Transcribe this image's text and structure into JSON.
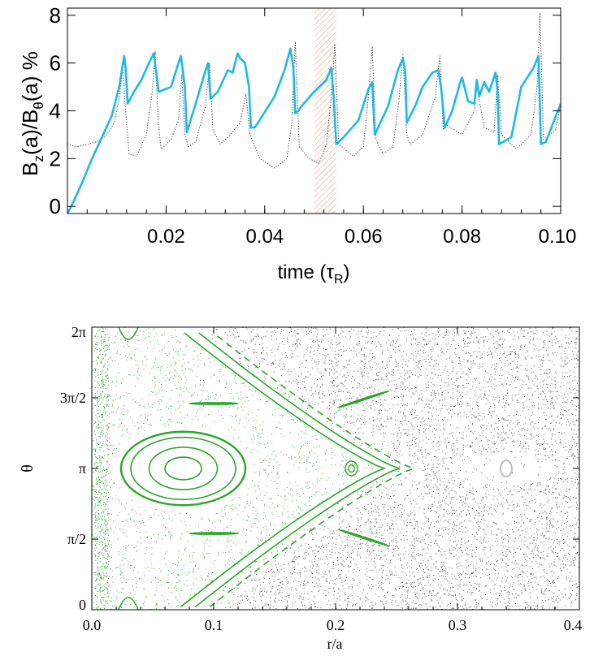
{
  "colors": {
    "cyan_series": "#1fb8e8",
    "dotted_series": "#222222",
    "hatch": "#f0a07a",
    "green_orbits": "#2aa52a",
    "black_points": "#333333",
    "grey_islands": "#bbbbbb"
  },
  "chart_data": [
    {
      "type": "line",
      "title": "",
      "xlabel": "time (τ",
      "xlabel_sub": "R",
      "xlabel_close": ")",
      "ylabel_parts": [
        "B",
        "z",
        "(a)/B",
        "θ",
        "(a) %"
      ],
      "xlim": [
        0.0,
        0.1
      ],
      "ylim": [
        -0.3,
        8.3
      ],
      "xticks": [
        0.02,
        0.04,
        0.06,
        0.08,
        0.1
      ],
      "xtick_labels": [
        "0.02",
        "0.04",
        "0.06",
        "0.08",
        "0.10"
      ],
      "yticks": [
        0,
        2,
        4,
        6,
        8
      ],
      "ytick_labels": [
        "0",
        "2",
        "4",
        "6",
        "8"
      ],
      "shaded_band": [
        0.05,
        0.0545
      ],
      "series": [
        {
          "style": "solid",
          "x": [
            0.0,
            0.001,
            0.003,
            0.005,
            0.007,
            0.009,
            0.0105,
            0.0115,
            0.0118,
            0.0122,
            0.0135,
            0.015,
            0.0165,
            0.0175,
            0.018,
            0.0185,
            0.021,
            0.0225,
            0.023,
            0.0238,
            0.0242,
            0.026,
            0.028,
            0.0285,
            0.029,
            0.0305,
            0.0325,
            0.0335,
            0.0345,
            0.035,
            0.036,
            0.0368,
            0.0372,
            0.038,
            0.042,
            0.044,
            0.0452,
            0.0458,
            0.0462,
            0.0468,
            0.0475,
            0.05,
            0.0525,
            0.0535,
            0.054,
            0.0545,
            0.056,
            0.059,
            0.061,
            0.0618,
            0.0623,
            0.065,
            0.067,
            0.068,
            0.0685,
            0.0688,
            0.0705,
            0.072,
            0.074,
            0.0752,
            0.0758,
            0.0765,
            0.078,
            0.0795,
            0.08,
            0.0805,
            0.0812,
            0.0825,
            0.083,
            0.0835,
            0.0845,
            0.0855,
            0.0868,
            0.0872,
            0.0875,
            0.09,
            0.092,
            0.0945,
            0.0955,
            0.096,
            0.097,
            0.1
          ],
          "y": [
            -0.3,
            0.1,
            1.0,
            2.0,
            2.9,
            3.8,
            5.0,
            6.3,
            5.8,
            4.3,
            4.8,
            5.3,
            6.0,
            6.4,
            5.6,
            4.8,
            5.0,
            6.0,
            6.3,
            5.0,
            3.1,
            4.3,
            5.7,
            6.0,
            4.5,
            4.8,
            5.7,
            5.6,
            6.4,
            6.2,
            6.0,
            5.0,
            3.3,
            3.3,
            4.6,
            5.7,
            6.6,
            5.8,
            3.9,
            4.0,
            4.2,
            4.8,
            5.3,
            5.8,
            4.5,
            2.6,
            2.9,
            3.6,
            4.9,
            5.2,
            3.0,
            4.2,
            5.7,
            6.2,
            5.6,
            3.5,
            4.2,
            5.0,
            5.6,
            5.7,
            4.9,
            3.3,
            4.0,
            5.1,
            5.4,
            5.0,
            4.4,
            4.3,
            5.3,
            4.6,
            5.2,
            4.8,
            5.6,
            4.8,
            2.6,
            2.9,
            5.0,
            5.8,
            6.3,
            2.6,
            2.7,
            4.3
          ]
        },
        {
          "style": "dotted",
          "x": [
            0.0,
            0.002,
            0.004,
            0.006,
            0.008,
            0.0095,
            0.0105,
            0.0112,
            0.0118,
            0.0125,
            0.014,
            0.016,
            0.0172,
            0.0178,
            0.0184,
            0.019,
            0.021,
            0.0225,
            0.0232,
            0.0238,
            0.0245,
            0.026,
            0.028,
            0.0288,
            0.0295,
            0.031,
            0.033,
            0.035,
            0.0362,
            0.037,
            0.039,
            0.042,
            0.0445,
            0.0455,
            0.0462,
            0.047,
            0.049,
            0.051,
            0.0525,
            0.0535,
            0.0542,
            0.055,
            0.058,
            0.06,
            0.0612,
            0.0618,
            0.0625,
            0.064,
            0.066,
            0.0672,
            0.068,
            0.0688,
            0.0695,
            0.072,
            0.0745,
            0.0755,
            0.0762,
            0.077,
            0.08,
            0.0825,
            0.083,
            0.0845,
            0.0865,
            0.0872,
            0.088,
            0.091,
            0.094,
            0.0952,
            0.0958,
            0.0965,
            0.099,
            0.1
          ],
          "y": [
            2.6,
            2.5,
            2.6,
            2.7,
            3.0,
            3.5,
            4.5,
            5.8,
            4.0,
            2.2,
            2.1,
            3.0,
            4.8,
            6.5,
            3.5,
            2.4,
            2.8,
            3.6,
            5.5,
            3.0,
            2.5,
            2.7,
            4.2,
            6.0,
            3.2,
            2.6,
            3.0,
            3.5,
            4.7,
            3.0,
            2.0,
            1.6,
            2.0,
            3.5,
            6.9,
            2.5,
            2.0,
            1.8,
            2.6,
            4.6,
            6.8,
            2.6,
            2.1,
            2.5,
            5.0,
            6.7,
            2.8,
            2.2,
            2.5,
            4.4,
            6.4,
            3.0,
            2.6,
            3.0,
            4.5,
            6.3,
            3.2,
            3.4,
            3.0,
            4.0,
            5.0,
            3.3,
            3.1,
            5.5,
            3.0,
            2.4,
            3.0,
            5.0,
            8.1,
            2.8,
            3.2,
            4.3
          ]
        }
      ]
    },
    {
      "type": "scatter",
      "title": "",
      "xlabel": "r/a",
      "ylabel": "θ",
      "xlim": [
        0.0,
        0.4
      ],
      "ylim_multiples_of_pi": [
        0.0,
        2.0
      ],
      "xticks": [
        0.0,
        0.1,
        0.2,
        0.3,
        0.4
      ],
      "xtick_labels": [
        "0.0",
        "0.1",
        "0.2",
        "0.3",
        "0.4"
      ],
      "yticks_multiples_of_pi": [
        0.0,
        0.5,
        1.0,
        1.5,
        2.0
      ],
      "ytick_labels": [
        "0",
        "π/2",
        "π",
        "3π/2",
        "2π"
      ],
      "elements": {
        "closed_orbits_center": [
          0.075,
          1.0
        ],
        "closed_orbits_half_width": [
          0.015,
          0.028,
          0.043,
          0.051
        ],
        "closed_orbits_half_height": [
          0.08,
          0.15,
          0.22,
          0.26
        ],
        "small_island_center": [
          0.213,
          1.0
        ],
        "small_island_radii": [
          0.0025,
          0.005
        ],
        "grey_island_center": [
          0.34,
          1.0
        ],
        "elongated_islands": [
          {
            "x": 0.223,
            "y": 1.49,
            "half_length": 0.022,
            "half_thickness": 0.018,
            "angle_deg": -18
          },
          {
            "x": 0.223,
            "y": 0.51,
            "half_length": 0.022,
            "half_thickness": 0.018,
            "angle_deg": 18
          },
          {
            "x": 0.1,
            "y": 1.46,
            "half_length": 0.02,
            "half_thickness": 0.022,
            "angle_deg": 0
          },
          {
            "x": 0.1,
            "y": 0.54,
            "half_length": 0.02,
            "half_thickness": 0.022,
            "angle_deg": 0
          }
        ]
      }
    }
  ]
}
